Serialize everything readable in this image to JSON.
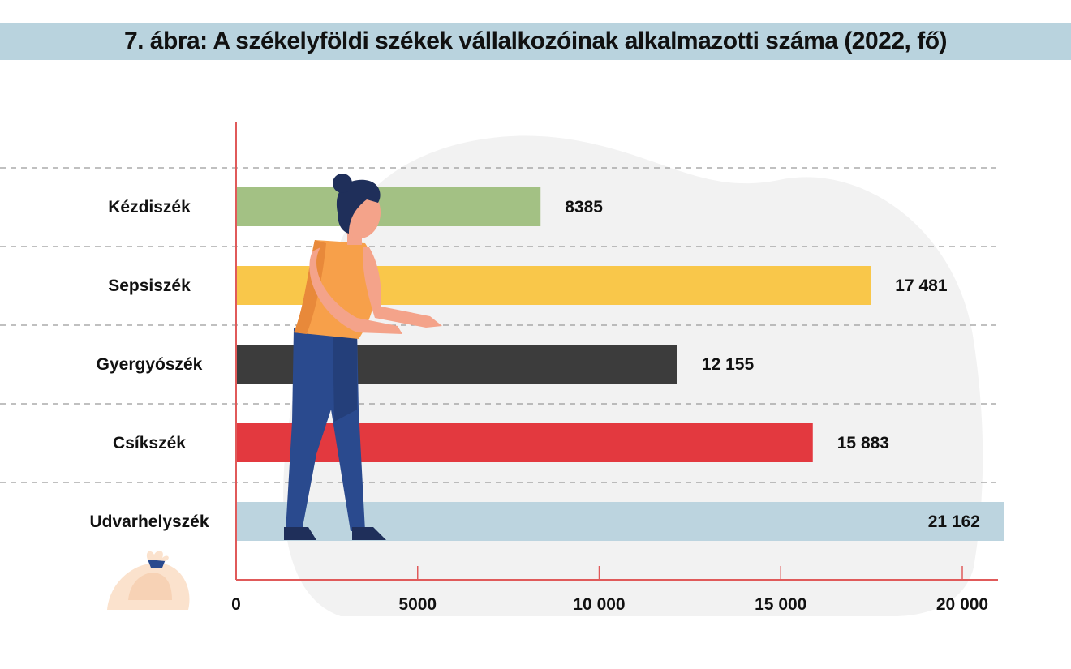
{
  "chart_data": {
    "type": "bar",
    "orientation": "horizontal",
    "title": "7. ábra: A székelyföldi székek vállalkozóinak alkalmazotti száma (2022, fő)",
    "categories": [
      "Kézdiszék",
      "Sepsiszék",
      "Gyergyószék",
      "Csíkszék",
      "Udvarhelyszék"
    ],
    "values": [
      8385,
      17481,
      12155,
      15883,
      21162
    ],
    "value_labels": [
      "8385",
      "17 481",
      "12 155",
      "15 883",
      "21 162"
    ],
    "colors": [
      "#a3c184",
      "#f9c74a",
      "#3c3c3c",
      "#e3393f",
      "#bcd4df"
    ],
    "x_ticks": [
      0,
      5000,
      10000,
      15000,
      20000
    ],
    "x_tick_labels": [
      "0",
      "5000",
      "10 000",
      "15 000",
      "20 000"
    ],
    "xlim": [
      0,
      21000
    ],
    "xlabel": "",
    "ylabel": "",
    "axis_color": "#e05a5a",
    "grid": "dashed horizontal separators"
  }
}
